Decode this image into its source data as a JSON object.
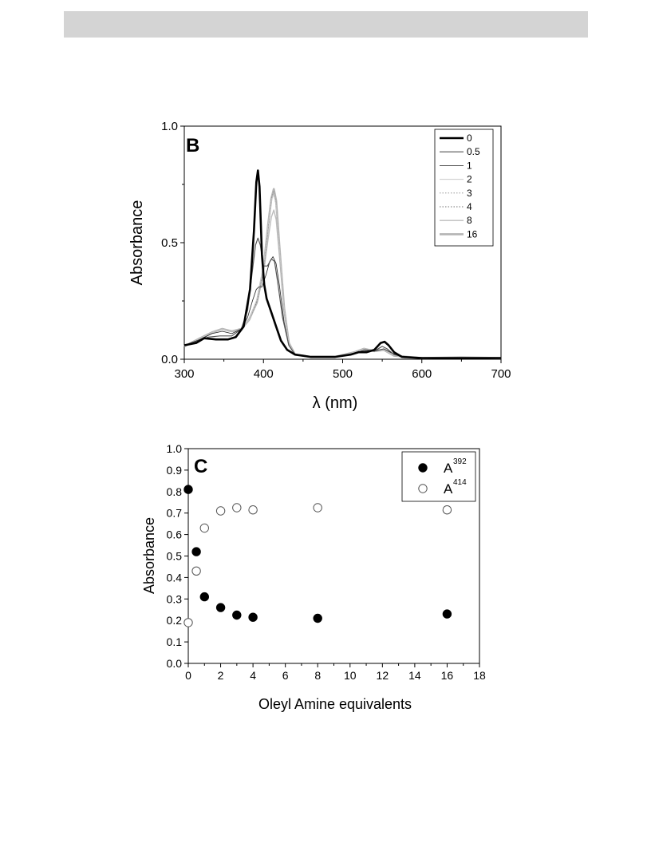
{
  "chart_data": [
    {
      "type": "line",
      "panel_label": "B",
      "xlabel": "λ (nm)",
      "ylabel": "Absorbance",
      "xlim": [
        300,
        700
      ],
      "ylim": [
        0.0,
        1.0
      ],
      "xticks": [
        "300",
        "400",
        "500",
        "600",
        "700"
      ],
      "yticks": [
        "0.0",
        "0.5",
        "1.0"
      ],
      "legend": {
        "placement": "top-right"
      },
      "series": [
        {
          "name": "0",
          "color": "#000000",
          "width": 2.6,
          "dash": "",
          "points": [
            [
              300,
              0.06
            ],
            [
              315,
              0.07
            ],
            [
              325,
              0.09
            ],
            [
              340,
              0.085
            ],
            [
              355,
              0.085
            ],
            [
              365,
              0.095
            ],
            [
              375,
              0.14
            ],
            [
              383,
              0.3
            ],
            [
              388,
              0.55
            ],
            [
              391,
              0.76
            ],
            [
              393,
              0.81
            ],
            [
              395,
              0.74
            ],
            [
              398,
              0.45
            ],
            [
              401,
              0.32
            ],
            [
              404,
              0.26
            ],
            [
              410,
              0.2
            ],
            [
              416,
              0.14
            ],
            [
              422,
              0.08
            ],
            [
              430,
              0.04
            ],
            [
              440,
              0.02
            ],
            [
              460,
              0.01
            ],
            [
              490,
              0.01
            ],
            [
              510,
              0.02
            ],
            [
              520,
              0.03
            ],
            [
              530,
              0.03
            ],
            [
              540,
              0.04
            ],
            [
              548,
              0.07
            ],
            [
              553,
              0.075
            ],
            [
              558,
              0.06
            ],
            [
              565,
              0.03
            ],
            [
              575,
              0.01
            ],
            [
              600,
              0.005
            ],
            [
              640,
              0.005
            ],
            [
              700,
              0.005
            ]
          ]
        },
        {
          "name": "0.5",
          "color": "#555555",
          "width": 1.2,
          "dash": "",
          "points": [
            [
              300,
              0.06
            ],
            [
              320,
              0.08
            ],
            [
              330,
              0.095
            ],
            [
              345,
              0.1
            ],
            [
              360,
              0.1
            ],
            [
              372,
              0.13
            ],
            [
              380,
              0.21
            ],
            [
              386,
              0.38
            ],
            [
              390,
              0.49
            ],
            [
              393,
              0.52
            ],
            [
              396,
              0.49
            ],
            [
              400,
              0.4
            ],
            [
              405,
              0.4
            ],
            [
              410,
              0.43
            ],
            [
              414,
              0.42
            ],
            [
              418,
              0.33
            ],
            [
              424,
              0.18
            ],
            [
              432,
              0.06
            ],
            [
              440,
              0.02
            ],
            [
              460,
              0.01
            ],
            [
              490,
              0.01
            ],
            [
              515,
              0.025
            ],
            [
              528,
              0.035
            ],
            [
              540,
              0.035
            ],
            [
              550,
              0.055
            ],
            [
              556,
              0.045
            ],
            [
              565,
              0.02
            ],
            [
              580,
              0.008
            ],
            [
              620,
              0.005
            ],
            [
              700,
              0.005
            ]
          ]
        },
        {
          "name": "1",
          "color": "#222222",
          "width": 0.8,
          "dash": "",
          "points": [
            [
              300,
              0.06
            ],
            [
              320,
              0.085
            ],
            [
              335,
              0.11
            ],
            [
              348,
              0.12
            ],
            [
              360,
              0.11
            ],
            [
              372,
              0.13
            ],
            [
              380,
              0.18
            ],
            [
              386,
              0.25
            ],
            [
              391,
              0.3
            ],
            [
              394,
              0.31
            ],
            [
              398,
              0.31
            ],
            [
              403,
              0.36
            ],
            [
              408,
              0.42
            ],
            [
              412,
              0.44
            ],
            [
              416,
              0.41
            ],
            [
              420,
              0.32
            ],
            [
              426,
              0.16
            ],
            [
              432,
              0.06
            ],
            [
              440,
              0.02
            ],
            [
              460,
              0.01
            ],
            [
              490,
              0.01
            ],
            [
              515,
              0.025
            ],
            [
              528,
              0.04
            ],
            [
              540,
              0.035
            ],
            [
              552,
              0.045
            ],
            [
              560,
              0.03
            ],
            [
              575,
              0.01
            ],
            [
              620,
              0.005
            ],
            [
              700,
              0.005
            ]
          ]
        },
        {
          "name": "2",
          "color": "#c8c8c8",
          "width": 1.0,
          "dash": "",
          "points": [
            [
              300,
              0.055
            ],
            [
              320,
              0.09
            ],
            [
              335,
              0.115
            ],
            [
              348,
              0.13
            ],
            [
              360,
              0.12
            ],
            [
              372,
              0.13
            ],
            [
              382,
              0.17
            ],
            [
              392,
              0.26
            ],
            [
              400,
              0.4
            ],
            [
              406,
              0.58
            ],
            [
              410,
              0.68
            ],
            [
              413,
              0.71
            ],
            [
              416,
              0.66
            ],
            [
              420,
              0.48
            ],
            [
              426,
              0.22
            ],
            [
              432,
              0.07
            ],
            [
              440,
              0.02
            ],
            [
              460,
              0.01
            ],
            [
              490,
              0.01
            ],
            [
              515,
              0.03
            ],
            [
              527,
              0.045
            ],
            [
              540,
              0.035
            ],
            [
              552,
              0.04
            ],
            [
              565,
              0.015
            ],
            [
              600,
              0.005
            ],
            [
              650,
              0.008
            ],
            [
              700,
              0.005
            ]
          ]
        },
        {
          "name": "3",
          "color": "#888888",
          "width": 0.8,
          "dash": "1.5,2",
          "points": [
            [
              300,
              0.055
            ],
            [
              320,
              0.09
            ],
            [
              335,
              0.115
            ],
            [
              348,
              0.13
            ],
            [
              360,
              0.12
            ],
            [
              372,
              0.13
            ],
            [
              382,
              0.17
            ],
            [
              392,
              0.25
            ],
            [
              400,
              0.39
            ],
            [
              406,
              0.58
            ],
            [
              410,
              0.69
            ],
            [
              413,
              0.72
            ],
            [
              416,
              0.67
            ],
            [
              420,
              0.48
            ],
            [
              426,
              0.22
            ],
            [
              432,
              0.07
            ],
            [
              440,
              0.02
            ],
            [
              460,
              0.01
            ],
            [
              490,
              0.01
            ],
            [
              515,
              0.03
            ],
            [
              527,
              0.045
            ],
            [
              540,
              0.035
            ],
            [
              552,
              0.04
            ],
            [
              565,
              0.015
            ],
            [
              600,
              0.005
            ],
            [
              650,
              0.008
            ],
            [
              700,
              0.005
            ]
          ]
        },
        {
          "name": "4",
          "color": "#444444",
          "width": 0.8,
          "dash": "1.5,2",
          "points": [
            [
              300,
              0.055
            ],
            [
              320,
              0.09
            ],
            [
              335,
              0.115
            ],
            [
              348,
              0.13
            ],
            [
              360,
              0.12
            ],
            [
              372,
              0.13
            ],
            [
              382,
              0.17
            ],
            [
              392,
              0.25
            ],
            [
              400,
              0.39
            ],
            [
              406,
              0.57
            ],
            [
              410,
              0.68
            ],
            [
              413,
              0.71
            ],
            [
              416,
              0.66
            ],
            [
              420,
              0.48
            ],
            [
              426,
              0.22
            ],
            [
              432,
              0.07
            ],
            [
              440,
              0.02
            ],
            [
              460,
              0.01
            ],
            [
              490,
              0.01
            ],
            [
              515,
              0.03
            ],
            [
              527,
              0.045
            ],
            [
              540,
              0.035
            ],
            [
              552,
              0.04
            ],
            [
              565,
              0.015
            ],
            [
              600,
              0.005
            ],
            [
              650,
              0.008
            ],
            [
              700,
              0.005
            ]
          ]
        },
        {
          "name": "8",
          "color": "#bdbdbd",
          "width": 1.4,
          "dash": "",
          "points": [
            [
              300,
              0.055
            ],
            [
              320,
              0.09
            ],
            [
              335,
              0.115
            ],
            [
              348,
              0.13
            ],
            [
              360,
              0.12
            ],
            [
              372,
              0.13
            ],
            [
              382,
              0.17
            ],
            [
              392,
              0.24
            ],
            [
              400,
              0.37
            ],
            [
              406,
              0.52
            ],
            [
              410,
              0.61
            ],
            [
              413,
              0.64
            ],
            [
              416,
              0.6
            ],
            [
              420,
              0.45
            ],
            [
              426,
              0.21
            ],
            [
              432,
              0.07
            ],
            [
              440,
              0.02
            ],
            [
              460,
              0.01
            ],
            [
              490,
              0.01
            ],
            [
              515,
              0.03
            ],
            [
              527,
              0.045
            ],
            [
              540,
              0.035
            ],
            [
              552,
              0.04
            ],
            [
              565,
              0.015
            ],
            [
              600,
              0.005
            ],
            [
              650,
              0.008
            ],
            [
              700,
              0.005
            ]
          ]
        },
        {
          "name": "16",
          "color": "#b4b4b4",
          "width": 2.6,
          "dash": "",
          "points": [
            [
              300,
              0.055
            ],
            [
              320,
              0.09
            ],
            [
              335,
              0.115
            ],
            [
              348,
              0.13
            ],
            [
              360,
              0.12
            ],
            [
              372,
              0.13
            ],
            [
              382,
              0.17
            ],
            [
              392,
              0.25
            ],
            [
              400,
              0.39
            ],
            [
              406,
              0.58
            ],
            [
              410,
              0.69
            ],
            [
              413,
              0.73
            ],
            [
              416,
              0.68
            ],
            [
              420,
              0.49
            ],
            [
              426,
              0.22
            ],
            [
              432,
              0.07
            ],
            [
              440,
              0.02
            ],
            [
              460,
              0.01
            ],
            [
              490,
              0.01
            ],
            [
              515,
              0.03
            ],
            [
              527,
              0.045
            ],
            [
              540,
              0.035
            ],
            [
              552,
              0.04
            ],
            [
              565,
              0.015
            ],
            [
              600,
              0.005
            ],
            [
              650,
              0.008
            ],
            [
              700,
              0.005
            ]
          ]
        }
      ]
    },
    {
      "type": "scatter",
      "panel_label": "C",
      "xlabel": "Oleyl Amine equivalents",
      "ylabel": "Absorbance",
      "xlim": [
        0,
        18
      ],
      "ylim": [
        0.0,
        1.0
      ],
      "xticks": [
        "0",
        "2",
        "4",
        "6",
        "8",
        "10",
        "12",
        "14",
        "16",
        "18"
      ],
      "yticks": [
        "0.0",
        "0.1",
        "0.2",
        "0.3",
        "0.4",
        "0.5",
        "0.6",
        "0.7",
        "0.8",
        "0.9",
        "1.0"
      ],
      "legend": {
        "placement": "top-right"
      },
      "series": [
        {
          "name": "A",
          "superscript": "392",
          "marker": "filled-circle",
          "x": [
            0,
            0.5,
            1,
            2,
            3,
            4,
            8,
            16
          ],
          "y": [
            0.81,
            0.52,
            0.31,
            0.26,
            0.225,
            0.215,
            0.21,
            0.23
          ]
        },
        {
          "name": "A",
          "superscript": "414",
          "marker": "open-circle",
          "x": [
            0,
            0.5,
            1,
            2,
            3,
            4,
            8,
            16
          ],
          "y": [
            0.19,
            0.43,
            0.63,
            0.71,
            0.725,
            0.715,
            0.725,
            0.715
          ]
        }
      ]
    }
  ]
}
